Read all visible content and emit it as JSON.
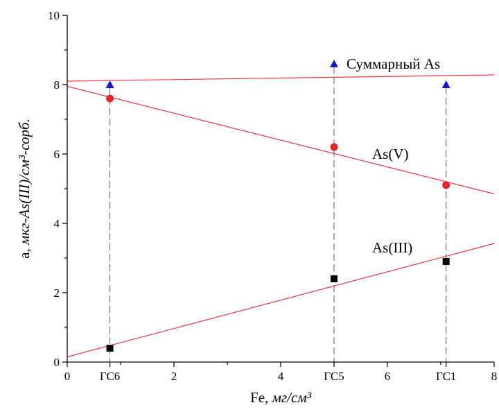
{
  "chart_data": {
    "type": "scatter",
    "xlabel_prefix": "Fe, ",
    "xlabel_unit": "мг/см³",
    "ylabel_prefix": "a, ",
    "ylabel_unit": "мкг-As(III)/см³-сорб.",
    "xlim": [
      0,
      8
    ],
    "ylim": [
      0,
      10
    ],
    "x_ticks": [
      {
        "value": 0,
        "label": "0"
      },
      {
        "value": 0.8,
        "label": "ГС6"
      },
      {
        "value": 2,
        "label": "2"
      },
      {
        "value": 4,
        "label": "4"
      },
      {
        "value": 5,
        "label": "ГС5"
      },
      {
        "value": 6,
        "label": "6"
      },
      {
        "value": 7.1,
        "label": "ГС1"
      },
      {
        "value": 8,
        "label": "8"
      }
    ],
    "y_ticks": [
      0,
      2,
      4,
      6,
      8,
      10
    ],
    "grid": false,
    "sample_lines_x": [
      0.8,
      5,
      7.1
    ],
    "series": [
      {
        "name": "Суммарный As",
        "marker": "triangle",
        "color": "#1515d6",
        "x": [
          0.8,
          5,
          7.1
        ],
        "y": [
          8.0,
          8.6,
          8.0
        ],
        "fit": [
          [
            0,
            8.1
          ],
          [
            8,
            8.28
          ]
        ]
      },
      {
        "name": "As(V)",
        "marker": "circle",
        "color": "#e8212b",
        "x": [
          0.8,
          5,
          7.1
        ],
        "y": [
          7.6,
          6.2,
          5.1
        ],
        "fit": [
          [
            0,
            7.95
          ],
          [
            8,
            4.85
          ]
        ]
      },
      {
        "name": "As(III)",
        "marker": "square",
        "color": "#000000",
        "x": [
          0.8,
          5,
          7.1
        ],
        "y": [
          0.4,
          2.4,
          2.9
        ],
        "fit": [
          [
            0,
            0.15
          ],
          [
            8,
            3.42
          ]
        ]
      }
    ]
  }
}
